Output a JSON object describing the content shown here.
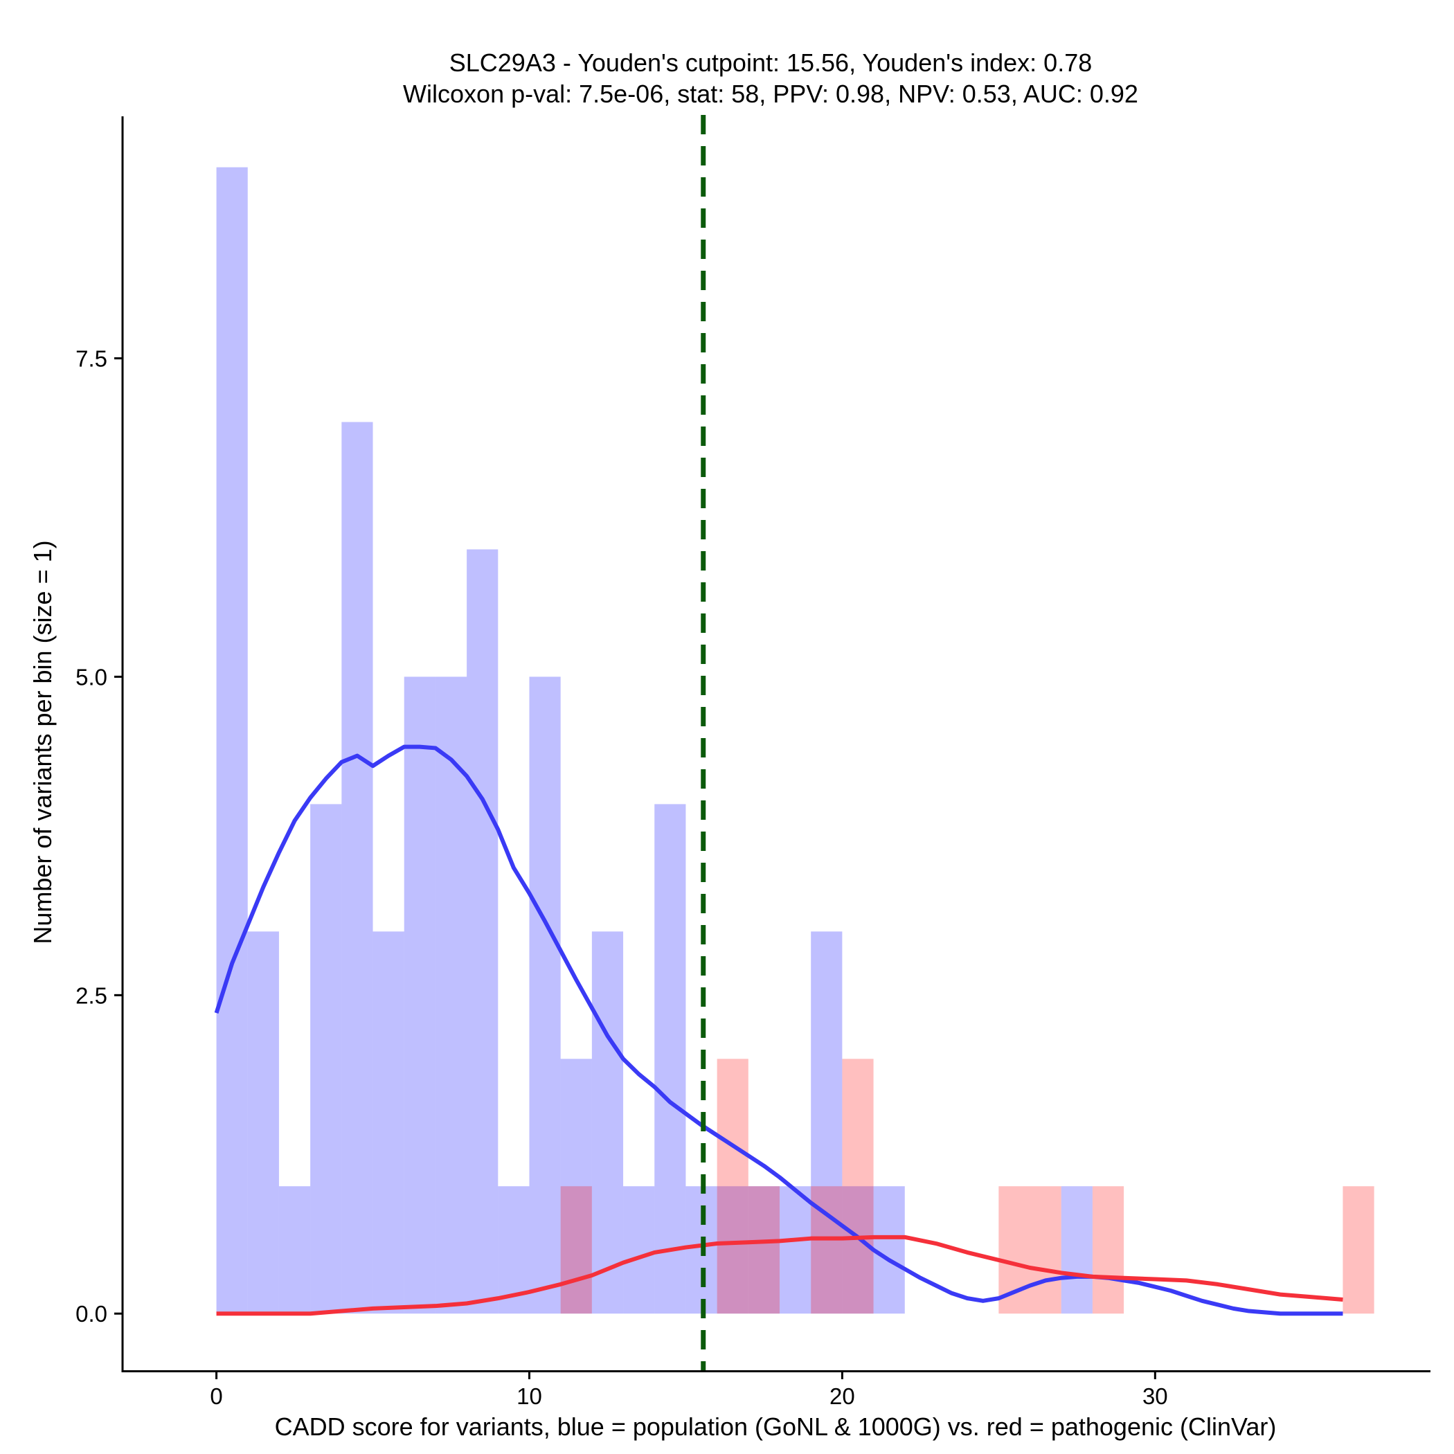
{
  "chart_data": {
    "type": "histogram",
    "title_line1": "SLC29A3 - Youden's cutpoint: 15.56, Youden's index: 0.78",
    "title_line2": "Wilcoxon p-val: 7.5e-06, stat: 58, PPV: 0.98, NPV: 0.53, AUC: 0.92",
    "xlabel": "CADD score for variants, blue = population (GoNL & 1000G) vs. red = pathogenic (ClinVar)",
    "ylabel": "Number of variants per bin (size = 1)",
    "xlim": [
      -3,
      38.8
    ],
    "ylim": [
      -0.45,
      9.4
    ],
    "x_ticks": [
      0,
      10,
      20,
      30
    ],
    "x_tick_labels": [
      "0",
      "10",
      "20",
      "30"
    ],
    "y_ticks": [
      0,
      2.5,
      5,
      7.5
    ],
    "y_tick_labels": [
      "0.0",
      "2.5",
      "5.0",
      "7.5"
    ],
    "bin_width": 1,
    "cutpoint": 15.56,
    "series": [
      {
        "name": "population (GoNL & 1000G)",
        "color": "#0000ff",
        "bar_opacity": 0.25,
        "bin_starts": [
          0,
          1,
          2,
          3,
          4,
          5,
          6,
          7,
          8,
          9,
          10,
          11,
          12,
          13,
          14,
          15,
          16,
          17,
          18,
          19,
          20,
          21
        ],
        "counts": [
          9,
          3,
          1,
          4,
          7,
          3,
          5,
          5,
          6,
          1,
          5,
          2,
          3,
          1,
          4,
          1,
          1,
          1,
          1,
          3,
          1,
          1
        ]
      },
      {
        "name": "pathogenic (ClinVar)",
        "color": "#ff0000",
        "bar_opacity": 0.25,
        "bin_starts": [
          11,
          16,
          17,
          19,
          20,
          25,
          26,
          28,
          36
        ],
        "counts": [
          1,
          2,
          1,
          1,
          2,
          1,
          1,
          1,
          1
        ]
      },
      {
        "name": "population (GoNL & 1000G)",
        "color": "#1111ff",
        "bin_starts": [
          27
        ],
        "counts": [
          1
        ]
      }
    ],
    "density_curves": [
      {
        "name": "population density",
        "color": "#3a3af5",
        "x": [
          0,
          0.5,
          1,
          1.5,
          2,
          2.5,
          3,
          3.5,
          4,
          4.5,
          5,
          5.5,
          6,
          6.5,
          7,
          7.5,
          8,
          8.5,
          9,
          9.5,
          10,
          10.5,
          11,
          11.5,
          12,
          12.5,
          13,
          13.5,
          14,
          14.5,
          15,
          15.5,
          16,
          16.5,
          17,
          17.5,
          18,
          18.5,
          19,
          19.5,
          20,
          20.5,
          21,
          21.5,
          22,
          22.5,
          23,
          23.5,
          24,
          24.5,
          25,
          25.5,
          26,
          26.5,
          27,
          27.5,
          28,
          28.5,
          29,
          29.5,
          30,
          30.5,
          31,
          31.5,
          32,
          32.5,
          33,
          33.5,
          34,
          35,
          36
        ],
        "y": [
          2.36,
          2.75,
          3.05,
          3.35,
          3.62,
          3.87,
          4.05,
          4.2,
          4.33,
          4.38,
          4.3,
          4.38,
          4.45,
          4.45,
          4.44,
          4.35,
          4.22,
          4.04,
          3.8,
          3.5,
          3.3,
          3.08,
          2.85,
          2.62,
          2.4,
          2.18,
          2.0,
          1.88,
          1.78,
          1.66,
          1.57,
          1.48,
          1.4,
          1.32,
          1.24,
          1.16,
          1.07,
          0.97,
          0.87,
          0.78,
          0.69,
          0.6,
          0.5,
          0.42,
          0.35,
          0.28,
          0.22,
          0.16,
          0.12,
          0.1,
          0.12,
          0.17,
          0.22,
          0.26,
          0.28,
          0.29,
          0.29,
          0.28,
          0.26,
          0.24,
          0.21,
          0.18,
          0.14,
          0.1,
          0.07,
          0.04,
          0.02,
          0.01,
          0,
          0,
          0
        ]
      },
      {
        "name": "pathogenic density",
        "color": "#f5303a",
        "x": [
          0,
          1,
          2,
          3,
          4,
          5,
          6,
          7,
          8,
          9,
          10,
          11,
          12,
          13,
          14,
          15,
          16,
          17,
          18,
          19,
          20,
          21,
          22,
          23,
          24,
          25,
          26,
          27,
          28,
          29,
          30,
          31,
          32,
          33,
          34,
          35,
          36
        ],
        "y": [
          0,
          0,
          0,
          0,
          0.02,
          0.04,
          0.05,
          0.06,
          0.08,
          0.12,
          0.17,
          0.23,
          0.3,
          0.4,
          0.48,
          0.52,
          0.55,
          0.56,
          0.57,
          0.59,
          0.59,
          0.6,
          0.6,
          0.55,
          0.48,
          0.42,
          0.36,
          0.32,
          0.29,
          0.28,
          0.27,
          0.26,
          0.23,
          0.19,
          0.15,
          0.13,
          0.11
        ]
      }
    ]
  }
}
